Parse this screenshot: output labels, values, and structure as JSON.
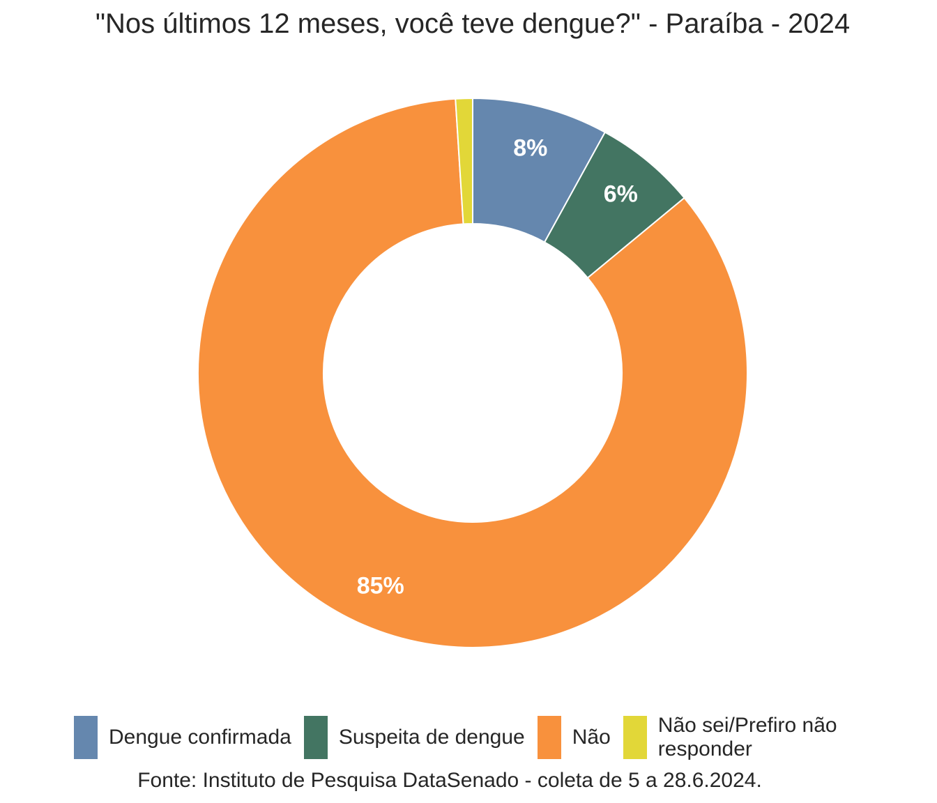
{
  "chart_data": {
    "type": "pie",
    "title": "\"Nos últimos 12 meses, você teve dengue?\" - Paraíba - 2024",
    "caption": "Fonte: Instituto de Pesquisa DataSenado - coleta de 5 a 28.6.2024.",
    "categories": [
      "Dengue confirmada",
      "Suspeita de dengue",
      "Não",
      "Não sei/Prefiro não responder"
    ],
    "values": [
      8,
      6,
      85,
      1
    ],
    "data_labels": [
      "8%",
      "6%",
      "85%",
      ""
    ],
    "colors": [
      "#6587AE",
      "#437562",
      "#F8913D",
      "#E2D738"
    ],
    "unit": "%",
    "legend_position": "bottom",
    "hole": true,
    "start": "12 o'clock, clockwise"
  }
}
